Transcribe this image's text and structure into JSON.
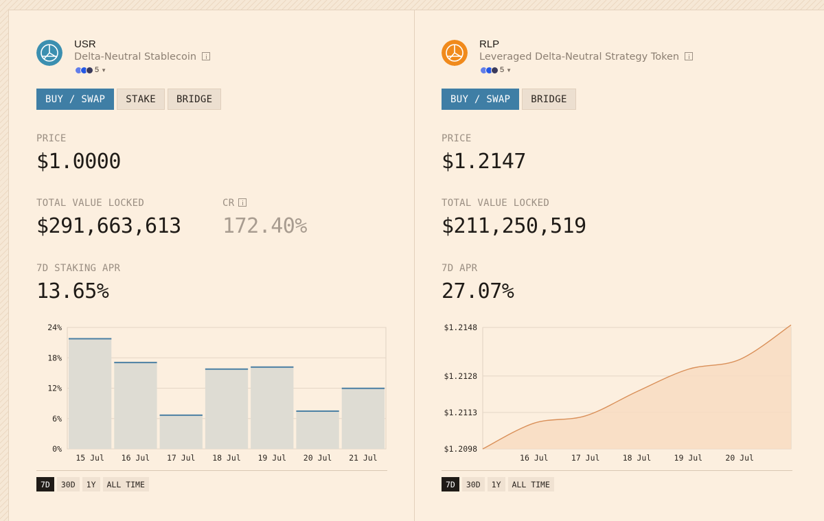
{
  "colors": {
    "accent_blue": "#3f7ea5",
    "bar_fill": "#dedcd3",
    "bar_cap": "#4a7fa3",
    "area_line": "#d98f58",
    "area_fill": "#f8dcc2",
    "usr_logo": "#3b8fb0",
    "rlp_logo": "#f08a1c"
  },
  "usr": {
    "icon": "usr-logo-icon",
    "name": "USR",
    "subtitle": "Delta-Neutral Stablecoin",
    "chain_count": "5",
    "tabs": [
      "BUY / SWAP",
      "STAKE",
      "BRIDGE"
    ],
    "price_label": "PRICE",
    "price_value": "$1.0000",
    "tvl_label": "TOTAL VALUE LOCKED",
    "tvl_value": "$291,663,613",
    "cr_label": "CR",
    "cr_value": "172.40%",
    "apr_label": "7D STAKING APR",
    "apr_value": "13.65%",
    "ranges": [
      "7D",
      "30D",
      "1Y",
      "ALL TIME"
    ],
    "active_range": "7D"
  },
  "rlp": {
    "icon": "rlp-logo-icon",
    "name": "RLP",
    "subtitle": "Leveraged Delta-Neutral Strategy Token",
    "chain_count": "5",
    "tabs": [
      "BUY / SWAP",
      "BRIDGE"
    ],
    "price_label": "PRICE",
    "price_value": "$1.2147",
    "tvl_label": "TOTAL VALUE LOCKED",
    "tvl_value": "$211,250,519",
    "apr_label": "7D APR",
    "apr_value": "27.07%",
    "ranges": [
      "7D",
      "30D",
      "1Y",
      "ALL TIME"
    ],
    "active_range": "7D"
  },
  "chart_data": [
    {
      "type": "bar",
      "categories": [
        "15 Jul",
        "16 Jul",
        "17 Jul",
        "18 Jul",
        "19 Jul",
        "20 Jul",
        "21 Jul"
      ],
      "values": [
        21.9,
        17.2,
        6.8,
        15.9,
        16.3,
        7.6,
        12.1
      ],
      "yticks": [
        "24%",
        "18%",
        "12%",
        "6%",
        "0%"
      ],
      "ylim": [
        0,
        24
      ],
      "grid": true
    },
    {
      "type": "area",
      "x": [
        "15 Jul",
        "16 Jul",
        "17 Jul",
        "18 Jul",
        "19 Jul",
        "20 Jul",
        "21 Jul"
      ],
      "xticks": [
        "16 Jul",
        "17 Jul",
        "18 Jul",
        "19 Jul",
        "20 Jul"
      ],
      "values": [
        1.2098,
        1.21086,
        1.21116,
        1.21216,
        1.21308,
        1.21348,
        1.2149
      ],
      "yticks": [
        "$1.2148",
        "$1.2128",
        "$1.2113",
        "$1.2098"
      ],
      "ylim": [
        1.2098,
        1.2148
      ],
      "grid": true
    }
  ]
}
